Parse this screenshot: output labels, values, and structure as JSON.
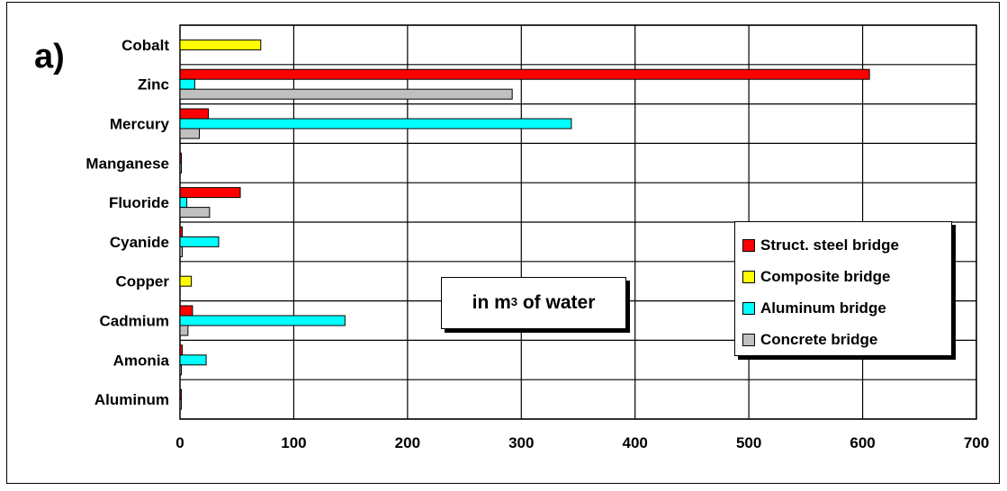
{
  "panel_label": "a)",
  "note": {
    "prefix": "in m",
    "superscript": "3",
    "suffix": " of water"
  },
  "legend": [
    {
      "label": "Struct. steel bridge",
      "color": "#ff0000"
    },
    {
      "label": "Composite bridge",
      "color": "#ffff00"
    },
    {
      "label": "Aluminum bridge",
      "color": "#00ffff"
    },
    {
      "label": "Concrete bridge",
      "color": "#c0c0c0"
    }
  ],
  "chart_data": {
    "type": "bar",
    "orientation": "horizontal",
    "categories": [
      "Cobalt",
      "Zinc",
      "Mercury",
      "Manganese",
      "Fluoride",
      "Cyanide",
      "Copper",
      "Cadmium",
      "Amonia",
      "Aluminum"
    ],
    "series": [
      {
        "name": "Struct. steel bridge",
        "color": "#ff0000",
        "values": [
          0,
          606,
          25,
          1,
          53,
          2,
          0,
          11,
          2,
          1
        ]
      },
      {
        "name": "Composite bridge",
        "color": "#ffff00",
        "values": [
          71,
          0,
          0,
          0,
          0,
          0,
          10,
          0,
          0,
          0
        ]
      },
      {
        "name": "Aluminum bridge",
        "color": "#00ffff",
        "values": [
          0,
          13,
          344,
          0,
          6,
          34,
          0,
          145,
          23,
          0
        ]
      },
      {
        "name": "Concrete bridge",
        "color": "#c0c0c0",
        "values": [
          0,
          292,
          17,
          1,
          26,
          2,
          0,
          7,
          1,
          1
        ]
      }
    ],
    "xlim": [
      0,
      700
    ],
    "xticks": [
      0,
      100,
      200,
      300,
      400,
      500,
      600,
      700
    ],
    "grid": true,
    "legend_position": "right-middle"
  }
}
